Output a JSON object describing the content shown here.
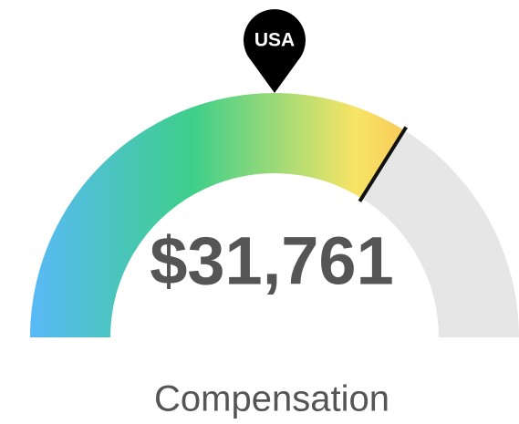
{
  "chart_data": {
    "type": "gauge",
    "value": 31761,
    "value_label": "$31,761",
    "label": "Compensation",
    "range": [
      0,
      46850
    ],
    "marker": {
      "label": "USA",
      "value": 23425
    },
    "gradient_colors": [
      "#59b9f7",
      "#3ecf8a",
      "#f8e465",
      "#f7903c"
    ],
    "track_color": "#e6e6e6"
  }
}
